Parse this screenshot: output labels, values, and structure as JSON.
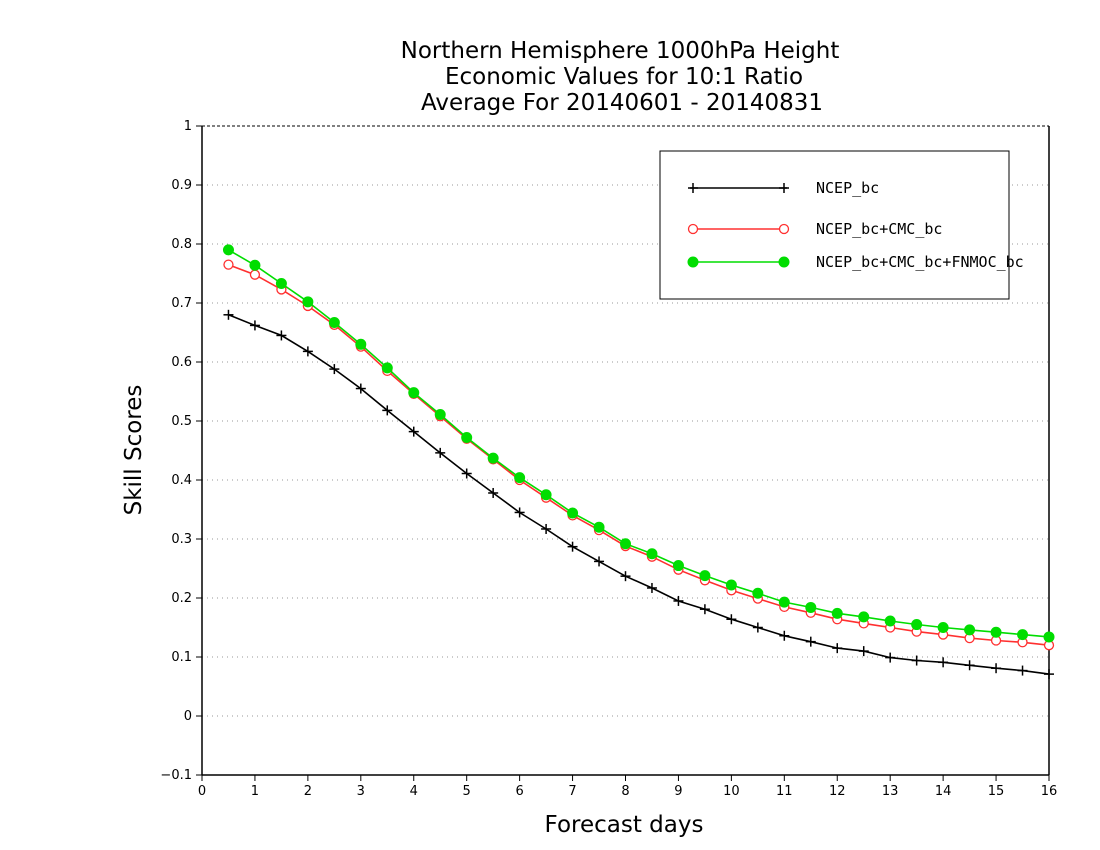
{
  "chart_data": {
    "type": "line",
    "title_lines": [
      "Northern Hemisphere 1000hPa Height",
      "Economic Values for 10:1 Ratio",
      "Average For 20140601 - 20140831"
    ],
    "xlabel": "Forecast days",
    "ylabel": "Skill Scores",
    "xlim": [
      0,
      16
    ],
    "ylim": [
      -0.1,
      1
    ],
    "xticks": [
      "0",
      "1",
      "2",
      "3",
      "4",
      "5",
      "6",
      "7",
      "8",
      "9",
      "10",
      "11",
      "12",
      "13",
      "14",
      "15",
      "16"
    ],
    "yticks": [
      "−0.1",
      "0",
      "0.1",
      "0.2",
      "0.3",
      "0.4",
      "0.5",
      "0.6",
      "0.7",
      "0.8",
      "0.9",
      "1"
    ],
    "grid": "horizontal-dotted",
    "legend_position": "top-right",
    "x": [
      0.5,
      1,
      1.5,
      2,
      2.5,
      3,
      3.5,
      4,
      4.5,
      5,
      5.5,
      6,
      6.5,
      7,
      7.5,
      8,
      8.5,
      9,
      9.5,
      10,
      10.5,
      11,
      11.5,
      12,
      12.5,
      13,
      13.5,
      14,
      14.5,
      15,
      15.5,
      16
    ],
    "series": [
      {
        "name": "NCEP_bc",
        "color": "#000000",
        "marker": "plus",
        "values": [
          0.68,
          0.662,
          0.645,
          0.618,
          0.588,
          0.555,
          0.518,
          0.482,
          0.446,
          0.411,
          0.378,
          0.345,
          0.317,
          0.287,
          0.262,
          0.237,
          0.217,
          0.195,
          0.181,
          0.164,
          0.15,
          0.136,
          0.126,
          0.115,
          0.11,
          0.099,
          0.094,
          0.091,
          0.086,
          0.081,
          0.077,
          0.071
        ]
      },
      {
        "name": "NCEP_bc+CMC_bc",
        "color": "#ff3030",
        "marker": "open-circle",
        "values": [
          0.765,
          0.748,
          0.723,
          0.695,
          0.663,
          0.626,
          0.585,
          0.546,
          0.508,
          0.47,
          0.435,
          0.4,
          0.37,
          0.34,
          0.315,
          0.288,
          0.27,
          0.248,
          0.23,
          0.213,
          0.199,
          0.185,
          0.175,
          0.164,
          0.157,
          0.15,
          0.143,
          0.138,
          0.132,
          0.128,
          0.125,
          0.12
        ]
      },
      {
        "name": "NCEP_bc+CMC_bc+FNMOC_bc",
        "color": "#00dd00",
        "marker": "filled-circle",
        "values": [
          0.79,
          0.764,
          0.733,
          0.702,
          0.667,
          0.63,
          0.59,
          0.548,
          0.511,
          0.472,
          0.437,
          0.404,
          0.375,
          0.344,
          0.32,
          0.292,
          0.275,
          0.255,
          0.238,
          0.222,
          0.208,
          0.193,
          0.184,
          0.174,
          0.168,
          0.161,
          0.155,
          0.15,
          0.146,
          0.142,
          0.138,
          0.134
        ]
      }
    ]
  }
}
